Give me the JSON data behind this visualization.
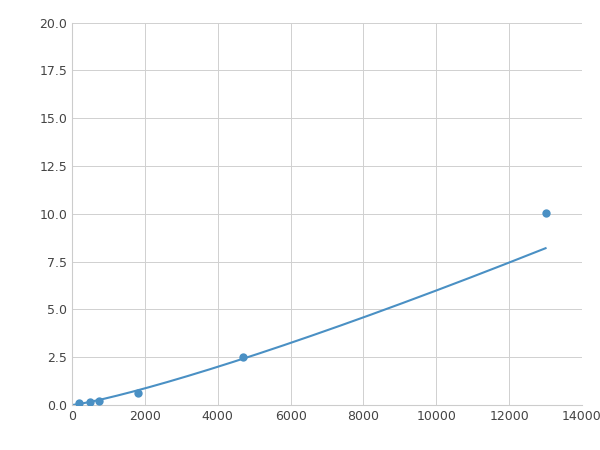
{
  "x": [
    200,
    500,
    750,
    1800,
    4700,
    13000
  ],
  "y": [
    0.08,
    0.15,
    0.2,
    0.62,
    2.5,
    10.05
  ],
  "line_color": "#4a90c4",
  "marker_color": "#4a90c4",
  "marker_size": 6,
  "xlim": [
    0,
    14000
  ],
  "ylim": [
    0,
    20
  ],
  "xticks": [
    0,
    2000,
    4000,
    6000,
    8000,
    10000,
    12000,
    14000
  ],
  "yticks": [
    0.0,
    2.5,
    5.0,
    7.5,
    10.0,
    12.5,
    15.0,
    17.5,
    20.0
  ],
  "grid_color": "#d0d0d0",
  "plot_bg": "#ffffff",
  "figure_bg": "#ffffff"
}
